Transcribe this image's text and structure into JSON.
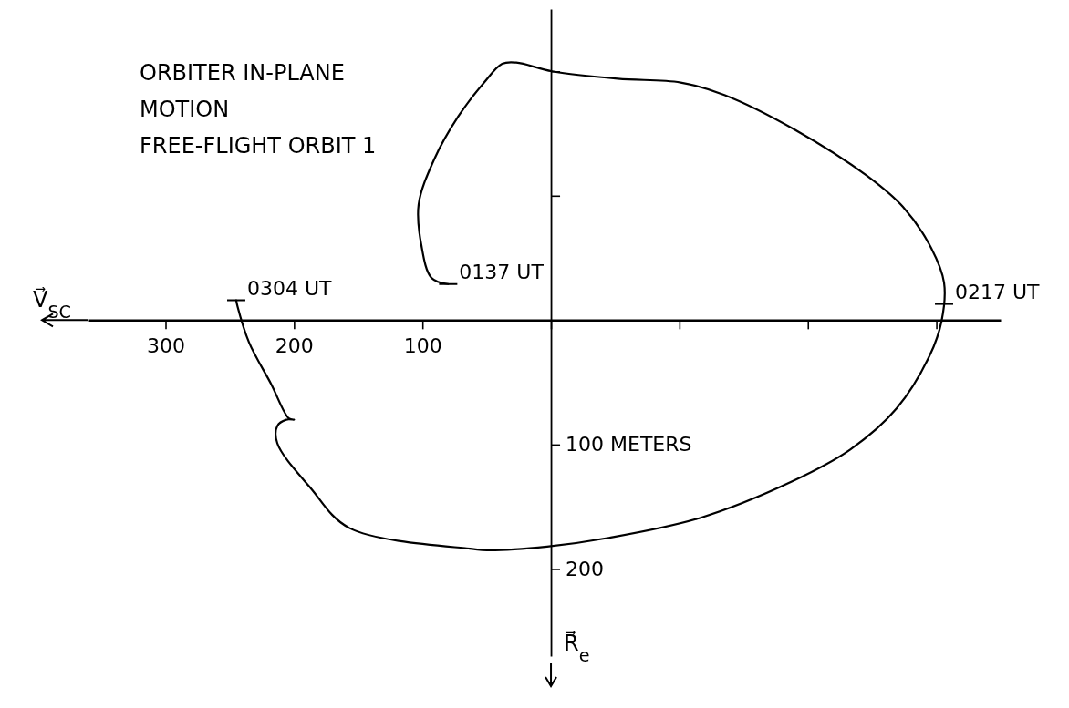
{
  "chart_data": {
    "type": "line",
    "title": "ORBITER IN-PLANE\nMOTION\nFREE-FLIGHT ORBIT 1",
    "xlabel": "V⃗$_{SC}$",
    "ylabel": "R⃗$_{e}$",
    "xlim": [
      360,
      -350
    ],
    "ylim": [
      270,
      -250
    ],
    "xticks": [
      300,
      200,
      100,
      {
        "value": 0,
        "label": null
      },
      {
        "value": -100,
        "label": null
      },
      {
        "value": -200,
        "label": null
      },
      {
        "value": -300,
        "label": null
      }
    ],
    "yticks": [
      {
        "value": -200,
        "label": null
      },
      {
        "value": -100,
        "label": null
      },
      {
        "value": 100,
        "label": "100 METERS"
      },
      200
    ],
    "grid": false,
    "marker": "none",
    "line_style": "solid",
    "series": [
      {
        "color": "#000000",
        "x": [
          80,
          93,
          101,
          103,
          91,
          72,
          52,
          38,
          27,
          -1,
          -52,
          -101,
          -135,
          -190,
          -246,
          -274,
          -296,
          -306,
          -304,
          -295,
          -269,
          -233,
          -187,
          -116,
          -45,
          3,
          50,
          60,
          157,
          187,
          213,
          213,
          206,
          200,
          204,
          218,
          235,
          244,
          245
        ],
        "values": [
          -29,
          -34,
          -61,
          -93,
          -129,
          -164,
          -191,
          -206,
          -207,
          -200,
          -194,
          -191,
          -181,
          -153,
          -116,
          -91,
          -58,
          -30,
          1,
          28,
          71,
          104,
          130,
          159,
          175,
          182,
          185,
          184,
          167,
          135,
          99,
          85,
          80,
          80,
          79,
          51,
          18,
          -11,
          -16
        ]
      }
    ],
    "annotations": [
      {
        "text": "0137 UT",
        "x": 80,
        "y": -29
      },
      {
        "text": "0217 UT",
        "x": -306,
        "y": -13
      },
      {
        "text": "0304 UT",
        "x": 245,
        "y": -16
      }
    ]
  }
}
